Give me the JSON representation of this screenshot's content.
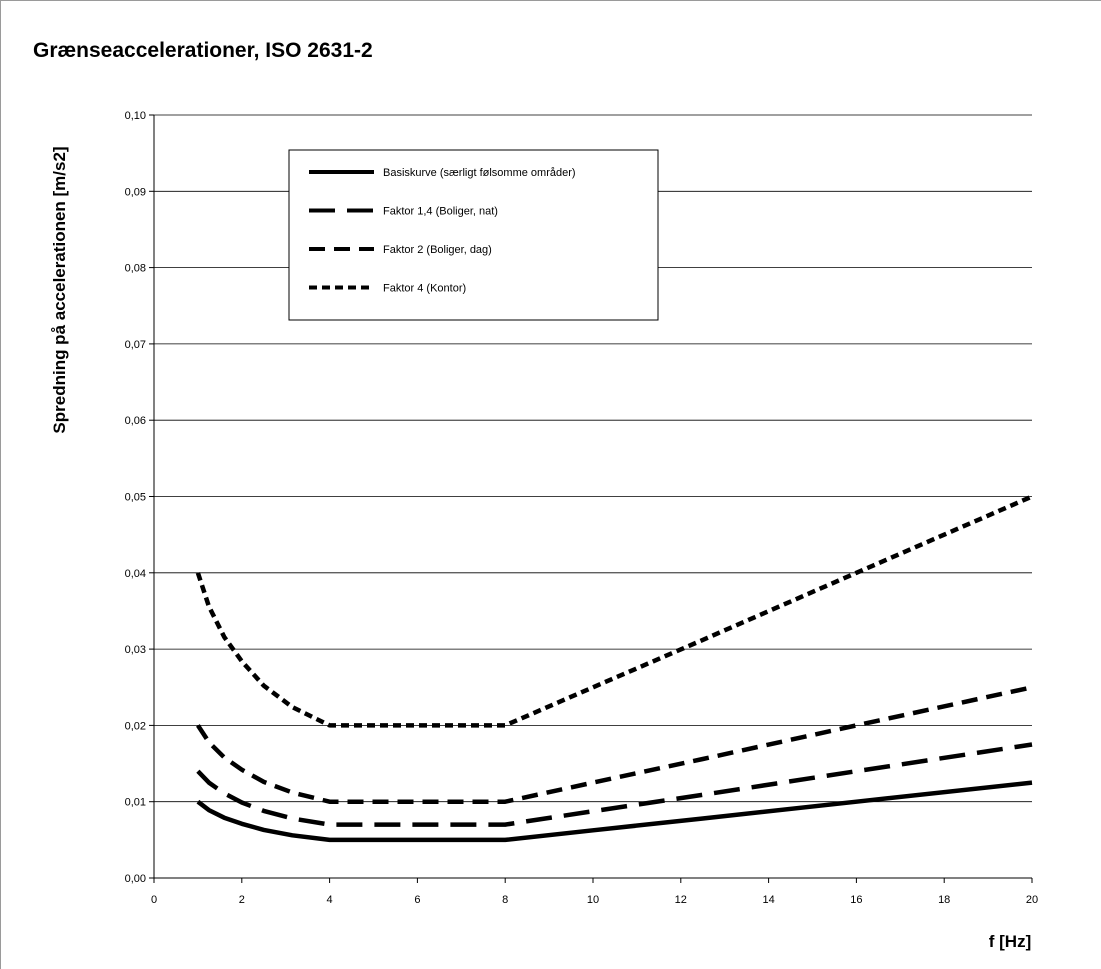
{
  "chart_data": {
    "type": "line",
    "title": "Grænseaccelerationer, ISO 2631-2",
    "xlabel": "f [Hz]",
    "ylabel": "Spredning på accelerationen [m/s2]",
    "xlim": [
      0,
      20
    ],
    "ylim": [
      0,
      0.1
    ],
    "x_ticks": [
      "0",
      "2",
      "4",
      "6",
      "8",
      "10",
      "12",
      "14",
      "16",
      "18",
      "20"
    ],
    "y_ticks": [
      "0,00",
      "0,01",
      "0,02",
      "0,03",
      "0,04",
      "0,05",
      "0,06",
      "0,07",
      "0,08",
      "0,09",
      "0,10"
    ],
    "grid": "horizontal",
    "legend_position": "top-left inside plot",
    "x": [
      1,
      1.25,
      1.6,
      2,
      2.5,
      3.15,
      4,
      5,
      6.3,
      8,
      10,
      12.5,
      16,
      20
    ],
    "series": [
      {
        "name": "Basiskurve (særligt følsomme områder)",
        "style": "solid",
        "values": [
          0.01,
          0.0089,
          0.0079,
          0.0071,
          0.0063,
          0.0056,
          0.005,
          0.005,
          0.005,
          0.005,
          0.00625,
          0.0078,
          0.01,
          0.0125
        ]
      },
      {
        "name": "Faktor 1,4 (Boliger, nat)",
        "style": "long-dash",
        "values": [
          0.014,
          0.0125,
          0.0111,
          0.0099,
          0.0088,
          0.0078,
          0.007,
          0.007,
          0.007,
          0.007,
          0.00875,
          0.0109,
          0.014,
          0.0175
        ]
      },
      {
        "name": "Faktor 2 (Boliger, dag)",
        "style": "dash",
        "values": [
          0.02,
          0.0178,
          0.0158,
          0.0142,
          0.0126,
          0.0112,
          0.01,
          0.01,
          0.01,
          0.01,
          0.0125,
          0.0156,
          0.02,
          0.025
        ]
      },
      {
        "name": "Faktor 4 (Kontor)",
        "style": "short-dash",
        "values": [
          0.04,
          0.0356,
          0.0316,
          0.0284,
          0.0252,
          0.0224,
          0.02,
          0.02,
          0.02,
          0.02,
          0.025,
          0.0312,
          0.04,
          0.05
        ]
      }
    ]
  }
}
